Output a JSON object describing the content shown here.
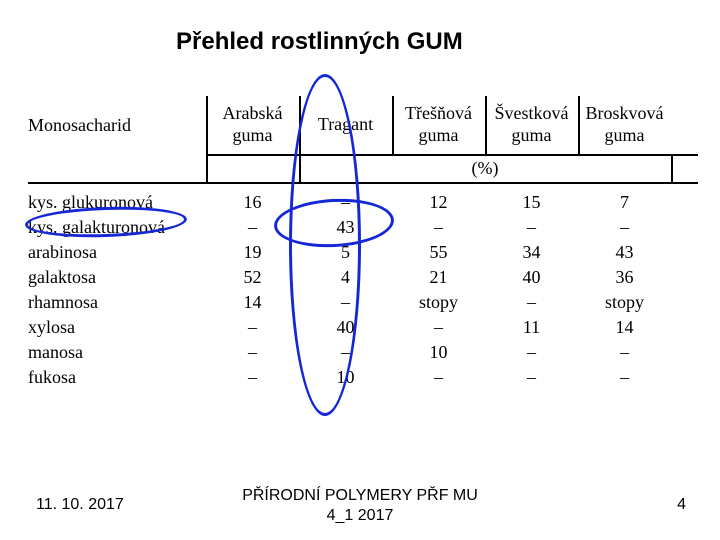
{
  "title": "Přehled rostlinných GUM",
  "table": {
    "row_label_header": "Monosacharid",
    "columns": [
      "Arabská\nguma",
      "Tragant",
      "Třešňová\nguma",
      "Švestková\nguma",
      "Broskvová\nguma"
    ],
    "pct_label": "(%)",
    "rows": [
      {
        "label": "kys. glukuronová",
        "vals": [
          "16",
          "–",
          "12",
          "15",
          "7"
        ]
      },
      {
        "label": "kys. galakturonová",
        "vals": [
          "–",
          "43",
          "–",
          "–",
          "–"
        ]
      },
      {
        "label": "arabinosa",
        "vals": [
          "19",
          "5",
          "55",
          "34",
          "43"
        ]
      },
      {
        "label": "galaktosa",
        "vals": [
          "52",
          "4",
          "21",
          "40",
          "36"
        ]
      },
      {
        "label": "rhamnosa",
        "vals": [
          "14",
          "–",
          "stopy",
          "–",
          "stopy"
        ]
      },
      {
        "label": "xylosa",
        "vals": [
          "–",
          "40",
          "–",
          "11",
          "14"
        ]
      },
      {
        "label": "manosa",
        "vals": [
          "–",
          "–",
          "10",
          "–",
          "–"
        ]
      },
      {
        "label": "fukosa",
        "vals": [
          "–",
          "10",
          "–",
          "–",
          "–"
        ]
      }
    ]
  },
  "footer": {
    "date": "11. 10. 2017",
    "center_line1": "PŘÍRODNÍ POLYMERY PŘF MU",
    "center_line2": "4_1 2017",
    "page": "4"
  },
  "colors": {
    "annotation": "#1528d6"
  }
}
